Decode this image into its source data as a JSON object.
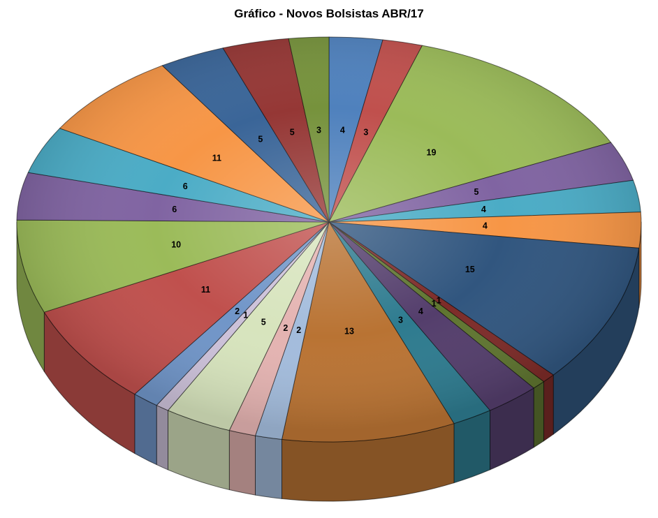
{
  "chart_data": {
    "type": "pie",
    "style": "3d-pie",
    "title": "Gráfico - Novos Bolsistas ABR/17",
    "title_color": "#000000",
    "label_color": "#000000",
    "labels_shown": "values",
    "legend": "none",
    "direction": "clockwise",
    "start_angle_deg": -90,
    "total": 145,
    "slices": [
      {
        "label": "4",
        "value": 4,
        "color": "#4F81BD"
      },
      {
        "label": "3",
        "value": 3,
        "color": "#C0504D"
      },
      {
        "label": "19",
        "value": 19,
        "color": "#9BBB59"
      },
      {
        "label": "5",
        "value": 5,
        "color": "#8064A2"
      },
      {
        "label": "4",
        "value": 4,
        "color": "#4BACC6"
      },
      {
        "label": "4",
        "value": 4,
        "color": "#F79646"
      },
      {
        "label": "15",
        "value": 15,
        "color": "#31567F"
      },
      {
        "label": "1",
        "value": 1,
        "color": "#7D2B28"
      },
      {
        "label": "1",
        "value": 1,
        "color": "#5F7530"
      },
      {
        "label": "4",
        "value": 4,
        "color": "#543E6C"
      },
      {
        "label": "3",
        "value": 3,
        "color": "#2E7B8F"
      },
      {
        "label": "13",
        "value": 13,
        "color": "#B97333"
      },
      {
        "label": "2",
        "value": 2,
        "color": "#A3BCDC"
      },
      {
        "label": "2",
        "value": 2,
        "color": "#E4B3B1"
      },
      {
        "label": "5",
        "value": 5,
        "color": "#D7E4BD"
      },
      {
        "label": "1",
        "value": 1,
        "color": "#CCC1D9"
      },
      {
        "label": "2",
        "value": 2,
        "color": "#7095C8"
      },
      {
        "label": "11",
        "value": 11,
        "color": "#C0504D"
      },
      {
        "label": "10",
        "value": 10,
        "color": "#9BBB59"
      },
      {
        "label": "6",
        "value": 6,
        "color": "#8064A2"
      },
      {
        "label": "6",
        "value": 6,
        "color": "#4BACC6"
      },
      {
        "label": "11",
        "value": 11,
        "color": "#F79646"
      },
      {
        "label": "5",
        "value": 5,
        "color": "#3A6598"
      },
      {
        "label": "5",
        "value": 5,
        "color": "#953735"
      },
      {
        "label": "3",
        "value": 3,
        "color": "#76923C"
      }
    ]
  }
}
